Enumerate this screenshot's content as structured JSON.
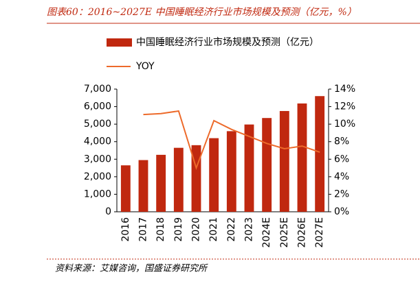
{
  "chart_data": {
    "type": "bar",
    "title": "图表60：2016~2027E 中国睡眠经济行业市场规模及预测（亿元，%）",
    "source": "资料来源：艾媒咨询，国盛证券研究所",
    "categories": [
      "2016",
      "2017",
      "2018",
      "2019",
      "2020",
      "2021",
      "2022",
      "2023",
      "2024E",
      "2025E",
      "2026E",
      "2027E"
    ],
    "series": [
      {
        "name": "中国睡眠经济行业市场规模及预测（亿元）",
        "type": "bar",
        "color": "#c0280f",
        "values": [
          2650,
          2950,
          3250,
          3650,
          3800,
          4200,
          4600,
          4980,
          5350,
          5750,
          6180,
          6600
        ]
      },
      {
        "name": "YOY",
        "type": "line",
        "axis": "y2",
        "color": "#ed6a2a",
        "values": [
          null,
          11.1,
          11.2,
          11.5,
          5.0,
          10.4,
          9.4,
          8.6,
          7.8,
          7.2,
          7.5,
          6.8
        ]
      }
    ],
    "ylim": [
      0,
      7000
    ],
    "yticks": [
      0,
      {
        "value": 1000,
        "label": "1,000"
      },
      {
        "value": 2000,
        "label": "2,000"
      },
      {
        "value": 3000,
        "label": "3,000"
      },
      {
        "value": 4000,
        "label": "4,000"
      },
      {
        "value": 5000,
        "label": "5,000"
      },
      {
        "value": 6000,
        "label": "6,000"
      },
      {
        "value": 7000,
        "label": "7,000"
      }
    ],
    "y2lim": [
      0,
      14
    ],
    "y2ticks": [
      {
        "value": 0,
        "label": "0%"
      },
      {
        "value": 2,
        "label": "2%"
      },
      {
        "value": 4,
        "label": "4%"
      },
      {
        "value": 6,
        "label": "6%"
      },
      {
        "value": 8,
        "label": "8%"
      },
      {
        "value": 10,
        "label": "10%"
      },
      {
        "value": 12,
        "label": "12%"
      },
      {
        "value": 14,
        "label": "14%"
      }
    ]
  }
}
